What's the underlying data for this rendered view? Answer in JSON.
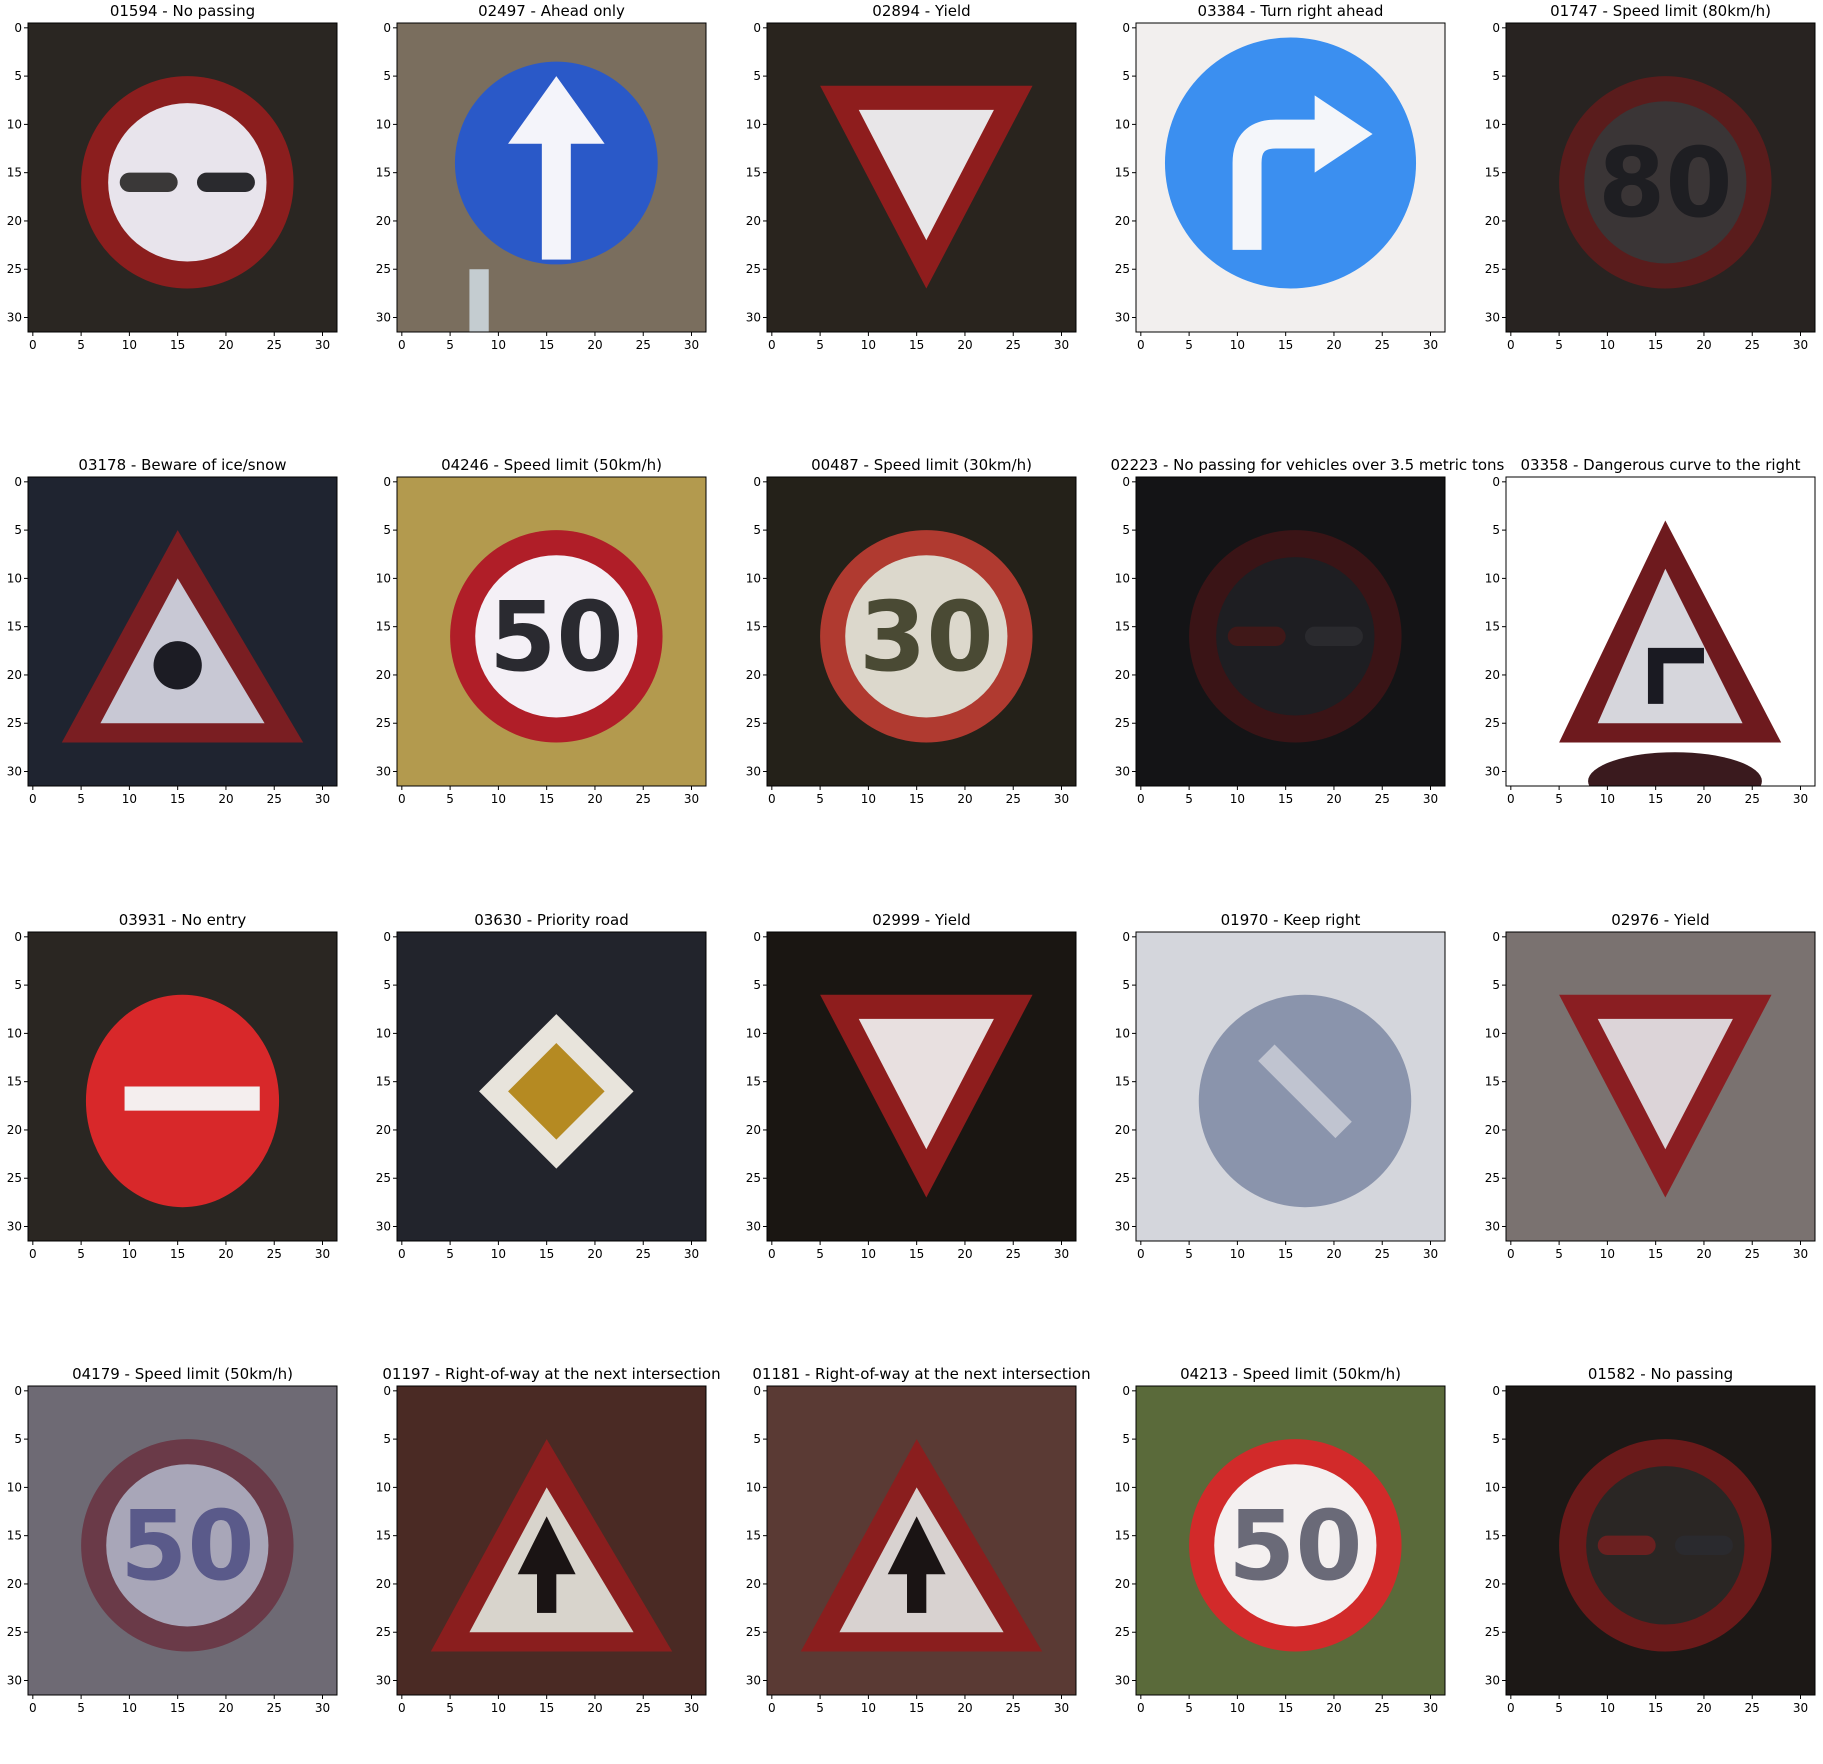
{
  "axis": {
    "x_ticks": [
      "0",
      "5",
      "10",
      "15",
      "20",
      "25",
      "30"
    ],
    "y_ticks": [
      "0",
      "5",
      "10",
      "15",
      "20",
      "25",
      "30"
    ]
  },
  "panels": [
    {
      "title": "01594 - No passing",
      "sign": "no-passing",
      "bg": "#2a2622",
      "colors": {
        "a": "#8b1e1e",
        "b": "#e8e4ec",
        "c": "#3a3838"
      }
    },
    {
      "title": "02497 - Ahead only",
      "sign": "ahead-only",
      "bg": "#7a6e5e",
      "colors": {
        "a": "#2a59c8",
        "b": "#f4f4fa"
      }
    },
    {
      "title": "02894 - Yield",
      "sign": "yield",
      "bg": "#29241e",
      "colors": {
        "a": "#8e1d1d",
        "b": "#e8e6e8"
      }
    },
    {
      "title": "03384 - Turn right ahead",
      "sign": "turn-right",
      "bg": "#f2efee",
      "colors": {
        "a": "#3b8ff0",
        "b": "#f4f6fa"
      }
    },
    {
      "title": "01747 - Speed limit (80km/h)",
      "sign": "speed",
      "text": "80",
      "bg": "#282321",
      "colors": {
        "a": "#5a1c1c",
        "b": "#3a3536",
        "c": "#1e1e22"
      }
    },
    {
      "title": "03178 - Beware of ice/snow",
      "sign": "ice",
      "bg": "#1f2430",
      "colors": {
        "a": "#7a1e22",
        "b": "#c8c8d4",
        "c": "#1c1c24"
      }
    },
    {
      "title": "04246 - Speed limit (50km/h)",
      "sign": "speed",
      "text": "50",
      "bg": "#b39a4e",
      "colors": {
        "a": "#b01e28",
        "b": "#f4f0f6",
        "c": "#2a2a30"
      }
    },
    {
      "title": "00487 - Speed limit (30km/h)",
      "sign": "speed",
      "text": "30",
      "bg": "#242119",
      "colors": {
        "a": "#b03a30",
        "b": "#dcd8cc",
        "c": "#4a4a34"
      }
    },
    {
      "title": "02223 - No passing for vehicles over 3.5 metric tons",
      "sign": "no-passing",
      "bg": "#141416",
      "colors": {
        "a": "#3a1416",
        "b": "#1e1e22",
        "c": "#401818"
      }
    },
    {
      "title": "03358 - Dangerous curve to the right",
      "sign": "curve-right",
      "bg": "#ffffff",
      "colors": {
        "a": "#6e1a1e",
        "b": "#d6d6dc",
        "c": "#1a1a22"
      }
    },
    {
      "title": "03931 - No entry",
      "sign": "no-entry",
      "bg": "#2a2622",
      "colors": {
        "a": "#d8282a",
        "b": "#f4eeee"
      }
    },
    {
      "title": "03630 - Priority road",
      "sign": "priority",
      "bg": "#22242c",
      "colors": {
        "a": "#e8e4dc",
        "b": "#b58a22"
      }
    },
    {
      "title": "02999 - Yield",
      "sign": "yield",
      "bg": "#1a1612",
      "colors": {
        "a": "#8e1d1d",
        "b": "#e8e0e0"
      }
    },
    {
      "title": "01970 - Keep right",
      "sign": "keep-right",
      "bg": "#d4d6dc",
      "colors": {
        "a": "#8a94ac",
        "b": "#c0c4d0"
      }
    },
    {
      "title": "02976 - Yield",
      "sign": "yield",
      "bg": "#7a7270",
      "colors": {
        "a": "#8a1e22",
        "b": "#dcd4d8"
      }
    },
    {
      "title": "04179 - Speed limit (50km/h)",
      "sign": "speed",
      "text": "50",
      "bg": "#6e6a74",
      "colors": {
        "a": "#6a3a48",
        "b": "#a8a6b8",
        "c": "#5a5a8a"
      }
    },
    {
      "title": "01197 - Right-of-way at the next intersection",
      "sign": "right-of-way",
      "bg": "#4a2a24",
      "colors": {
        "a": "#8a1e1e",
        "b": "#d8d4cc",
        "c": "#1a1414"
      }
    },
    {
      "title": "01181 - Right-of-way at the next intersection",
      "sign": "right-of-way",
      "bg": "#5a3a34",
      "colors": {
        "a": "#8a1e1e",
        "b": "#d8d2d0",
        "c": "#1a1414"
      }
    },
    {
      "title": "04213 - Speed limit (50km/h)",
      "sign": "speed",
      "text": "50",
      "bg": "#5a6a3a",
      "colors": {
        "a": "#d22a2a",
        "b": "#f4f0f0",
        "c": "#6a6a78"
      }
    },
    {
      "title": "01582 - No passing",
      "sign": "no-passing",
      "bg": "#1c1816",
      "colors": {
        "a": "#6a1a1a",
        "b": "#2a2624",
        "c": "#6a2020"
      }
    }
  ]
}
